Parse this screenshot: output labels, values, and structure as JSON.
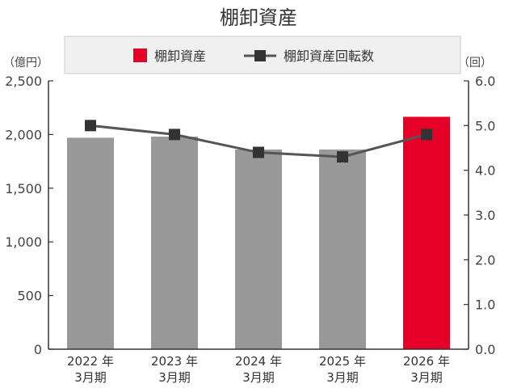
{
  "chart_data": {
    "type": "bar",
    "title": "棚卸資産",
    "categories": [
      {
        "year": "2022 年",
        "period": "3月期"
      },
      {
        "year": "2023 年",
        "period": "3月期"
      },
      {
        "year": "2024 年",
        "period": "3月期"
      },
      {
        "year": "2025 年",
        "period": "3月期"
      },
      {
        "year": "2026 年",
        "period": "3月期"
      }
    ],
    "series": [
      {
        "name": "棚卸資産",
        "type": "bar",
        "axis": "left",
        "values": [
          1970,
          1980,
          1860,
          1860,
          2165
        ],
        "colors": [
          "#999999",
          "#999999",
          "#999999",
          "#999999",
          "#e60027"
        ]
      },
      {
        "name": "棚卸資産回転数",
        "type": "line",
        "axis": "right",
        "values": [
          5.0,
          4.8,
          4.4,
          4.3,
          4.8
        ],
        "color": "#555555",
        "marker_color": "#333333"
      }
    ],
    "y_left": {
      "unit": "（億円）",
      "range": [
        0,
        2500
      ],
      "ticks": [
        "0",
        "500",
        "1,000",
        "1,500",
        "2,000",
        "2,500"
      ]
    },
    "y_right": {
      "unit": "（回）",
      "range": [
        0,
        6
      ],
      "ticks": [
        "0.0",
        "1.0",
        "2.0",
        "3.0",
        "4.0",
        "5.0",
        "6.0"
      ]
    },
    "legend_position": "top",
    "grid": false
  }
}
